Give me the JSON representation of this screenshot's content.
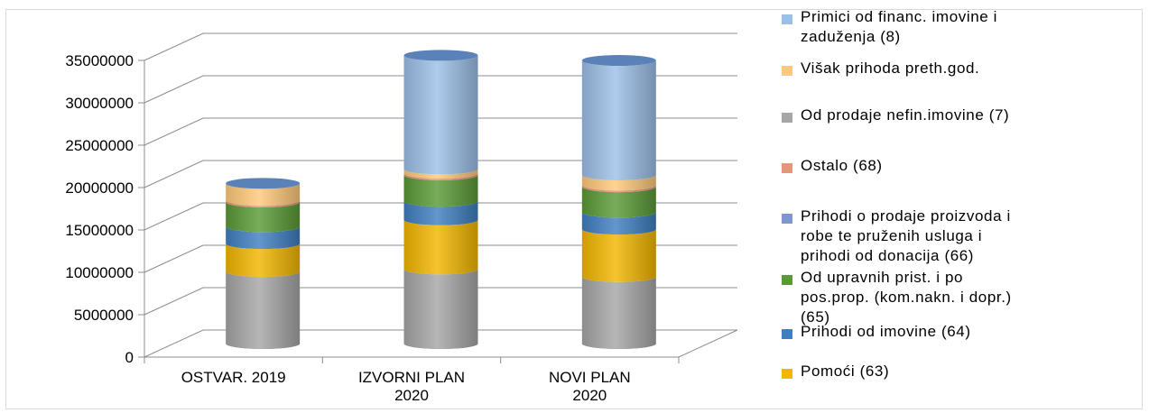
{
  "chart_data": {
    "type": "bar",
    "style": "stacked-3d-cylinder",
    "categories": [
      "OSTVAR. 2019",
      "IZVORNI PLAN\n2020",
      "NOVI PLAN\n2020"
    ],
    "yticks": [
      "0",
      "5000000",
      "10000000",
      "15000000",
      "20000000",
      "25000000",
      "30000000",
      "35000000"
    ],
    "ylim": [
      0,
      35000000
    ],
    "grid": true,
    "legend_position": "right",
    "series": [
      {
        "name": "Od prodaje nefin.imovine (7)",
        "color": "#a6a6a6",
        "values": [
          8500000,
          8800000,
          7900000
        ]
      },
      {
        "name": "Pomoći (63)",
        "color": "#f2b600",
        "values": [
          3300000,
          5800000,
          5600000
        ]
      },
      {
        "name": "Prihodi od imovine (64)",
        "color": "#3f7fc1",
        "values": [
          2000000,
          2200000,
          2000000
        ]
      },
      {
        "name": "Od upravnih prist. i po\npos.prop. (kom.nakn. i dopr.)\n(65)",
        "color": "#5a9a36",
        "values": [
          2900000,
          3100000,
          3000000
        ]
      },
      {
        "name": "Prihodi o prodaje proizvoda i\nrobe te pruženih usluga i\nprihodi od donacija (66)",
        "color": "#7f96d0",
        "values": [
          0,
          0,
          0
        ]
      },
      {
        "name": "Ostalo (68)",
        "color": "#e8967a",
        "values": [
          200000,
          200000,
          200000
        ]
      },
      {
        "name": "Višak prihoda preth.god.",
        "color": "#ffc97a",
        "values": [
          2000000,
          500000,
          1200000
        ]
      },
      {
        "name": "Primici od financ. imovine  i\nzaduženja (8)",
        "color": "#9cbfe6",
        "values": [
          0,
          13400000,
          13500000
        ]
      }
    ],
    "legend_order": [
      7,
      6,
      0,
      5,
      4,
      3,
      2,
      1
    ]
  }
}
